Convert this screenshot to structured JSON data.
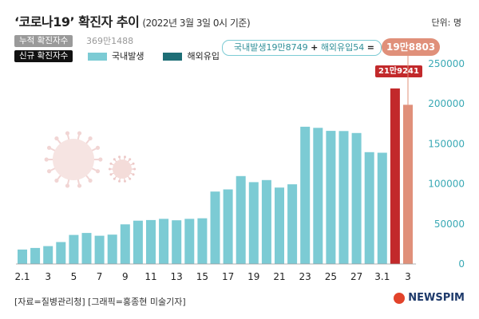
{
  "title": {
    "main": "‘코로나19’ 확진자 추이",
    "sub": "(2022년 3월 3일 0시 기준)",
    "unit": "단위: 명"
  },
  "labels": {
    "total_pill": "누적 확진자수",
    "total_value": "369만1488",
    "new_pill": "신규 확진자수",
    "legend_domestic": "국내발생",
    "legend_imported": "해외유입"
  },
  "callouts": {
    "domestic_part": "국내발생19만8749",
    "plus": "+",
    "imported_part": "해외유입54",
    "equals": "=",
    "latest_total": "19만8803",
    "peak_label": "21만9241"
  },
  "footer": {
    "source": "[자료=질병관리청] [그래픽=홍종현 미술기자]",
    "logo": "NEWSPIM"
  },
  "colors": {
    "domestic": "#7ccbd4",
    "imported": "#1e6e76",
    "peak": "#c2292b",
    "latest": "#e0907a"
  },
  "icons": [
    "virus-icon",
    "newspim-logo-icon"
  ],
  "chart_data": {
    "type": "bar",
    "xtick_labels": [
      "2.1",
      "3",
      "5",
      "7",
      "9",
      "11",
      "13",
      "15",
      "17",
      "19",
      "21",
      "23",
      "25",
      "27",
      "3.1",
      "3"
    ],
    "categories": [
      "2.1",
      "2.2",
      "2.3",
      "2.4",
      "2.5",
      "2.6",
      "2.7",
      "2.8",
      "2.9",
      "2.10",
      "2.11",
      "2.12",
      "2.13",
      "2.14",
      "2.15",
      "2.16",
      "2.17",
      "2.18",
      "2.19",
      "2.20",
      "2.21",
      "2.22",
      "2.23",
      "2.24",
      "2.25",
      "2.26",
      "2.27",
      "2.28",
      "3.1",
      "3.2",
      "3.3"
    ],
    "values": [
      18000,
      20000,
      22300,
      27400,
      36300,
      38700,
      35300,
      36700,
      49500,
      54100,
      54900,
      56400,
      54600,
      56400,
      57100,
      90400,
      93100,
      109800,
      102200,
      104800,
      95400,
      99500,
      171400,
      170000,
      166200,
      166000,
      163500,
      139600,
      138900,
      219241,
      198803
    ],
    "highlight": {
      "3.2": "peak",
      "3.3": "latest"
    },
    "ylim": [
      0,
      250000
    ],
    "yticks": [
      0,
      50000,
      100000,
      150000,
      200000,
      250000
    ],
    "ytick_labels": [
      "0",
      "50000",
      "100000",
      "150000",
      "200000",
      "250000"
    ],
    "grid": false,
    "legend_position": "top-left"
  }
}
